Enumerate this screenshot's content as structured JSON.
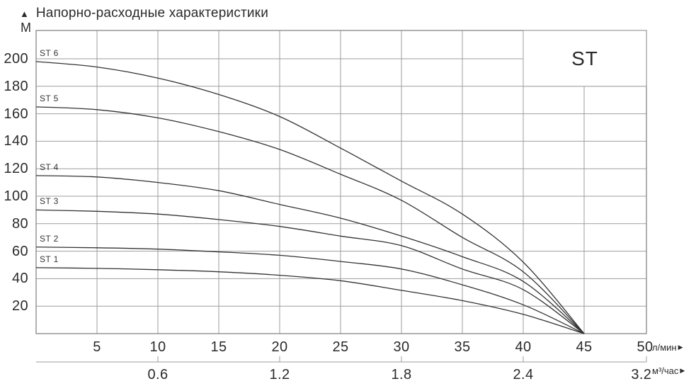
{
  "header": {
    "title": "Напорно-расходные характеристики"
  },
  "y_axis": {
    "unit": "М",
    "ticks": [
      200,
      180,
      160,
      140,
      120,
      100,
      80,
      60,
      40,
      20
    ]
  },
  "x_axis": {
    "unit": "л/мин",
    "ticks": [
      5,
      10,
      15,
      20,
      25,
      30,
      35,
      40,
      45,
      50
    ]
  },
  "x_axis2": {
    "unit": "м³/час"
  },
  "series_box": {
    "label": "ST"
  },
  "colors": {
    "background": "#ffffff",
    "text": "#2b2b2b",
    "grid": "#9e9e9e",
    "border": "#8f8f8f",
    "curve": "#333333"
  },
  "chart_data": {
    "type": "line",
    "title": "Напорно-расходные характеристики",
    "ylabel": "М",
    "xlabel": "л/мин",
    "xlabel2": "м³/час",
    "xlim": [
      0,
      50
    ],
    "ylim": [
      0,
      220
    ],
    "grid": true,
    "y_tick_step": 20,
    "x_tick_step": 5,
    "x": [
      0,
      5,
      10,
      15,
      20,
      25,
      30,
      35,
      40,
      45
    ],
    "series": [
      {
        "name": "ST 6",
        "values": [
          198,
          194,
          186,
          174,
          158,
          135,
          111,
          87,
          52,
          0
        ]
      },
      {
        "name": "ST 5",
        "values": [
          165,
          163,
          157,
          147,
          134,
          116,
          97,
          70,
          45,
          0
        ]
      },
      {
        "name": "ST 4",
        "values": [
          115,
          114,
          110,
          104,
          94,
          84,
          71,
          56,
          38,
          0
        ]
      },
      {
        "name": "ST 3",
        "values": [
          90,
          89,
          87,
          83,
          78,
          71,
          64,
          47,
          32,
          0
        ]
      },
      {
        "name": "ST 2",
        "values": [
          63,
          62.5,
          61.5,
          59.5,
          57,
          52.5,
          47,
          35.5,
          21,
          0
        ]
      },
      {
        "name": "ST 1",
        "values": [
          48,
          47.5,
          46.5,
          45,
          42.5,
          38.5,
          31.5,
          24,
          14,
          0
        ]
      }
    ],
    "secondary_x_ticks": [
      {
        "label": "0.6",
        "q": 10
      },
      {
        "label": "1.2",
        "q": 20
      },
      {
        "label": "1.8",
        "q": 30
      },
      {
        "label": "2.4",
        "q": 40
      },
      {
        "label": "3.2",
        "q": 49.7
      }
    ],
    "legend_position": "inline-left",
    "annotation_box": {
      "label": "ST",
      "x_range": [
        40,
        50
      ],
      "y_range": [
        180,
        220
      ]
    }
  }
}
